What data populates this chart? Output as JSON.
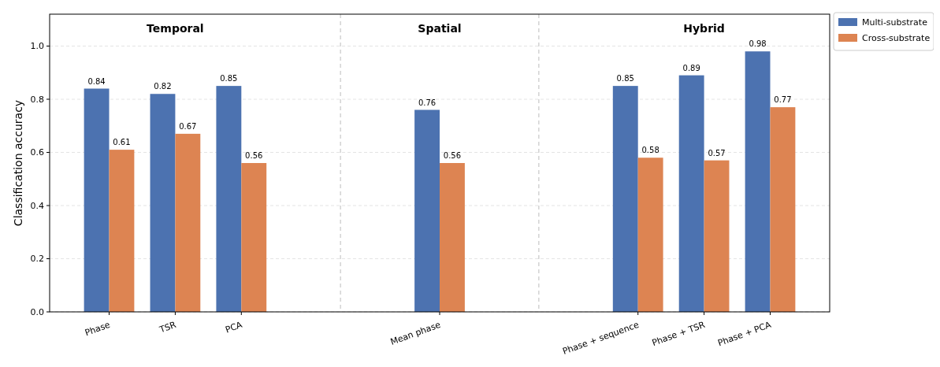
{
  "chart_data": {
    "type": "bar",
    "ylabel": "Classification accuracy",
    "categories": [
      "Phase",
      "TSR",
      "PCA",
      null,
      null,
      "Mean phase",
      null,
      null,
      "Phase + sequence",
      "Phase + TSR",
      "Phase + PCA"
    ],
    "series": [
      {
        "name": "Multi-substrate",
        "color": "#4c72b0",
        "values": [
          0.84,
          0.82,
          0.85,
          null,
          null,
          0.76,
          null,
          null,
          0.85,
          0.89,
          0.98
        ]
      },
      {
        "name": "Cross-substrate",
        "color": "#dd8452",
        "values": [
          0.61,
          0.67,
          0.56,
          null,
          null,
          0.56,
          null,
          null,
          0.58,
          0.57,
          0.77
        ]
      }
    ],
    "ylim": [
      0,
      1.12
    ],
    "yticks": [
      {
        "value": 0,
        "label": "0.0"
      },
      {
        "value": 0.2,
        "label": "0.2"
      },
      {
        "value": 0.4,
        "label": "0.4"
      },
      {
        "value": 0.6,
        "label": "0.6"
      },
      {
        "value": 0.8,
        "label": "0.8"
      },
      {
        "value": 1,
        "label": "1.0"
      }
    ],
    "grid": "y",
    "legend": "top right",
    "data_labels": true,
    "annotations": [
      "Temporal",
      "Spatial",
      "Hybrid"
    ]
  }
}
